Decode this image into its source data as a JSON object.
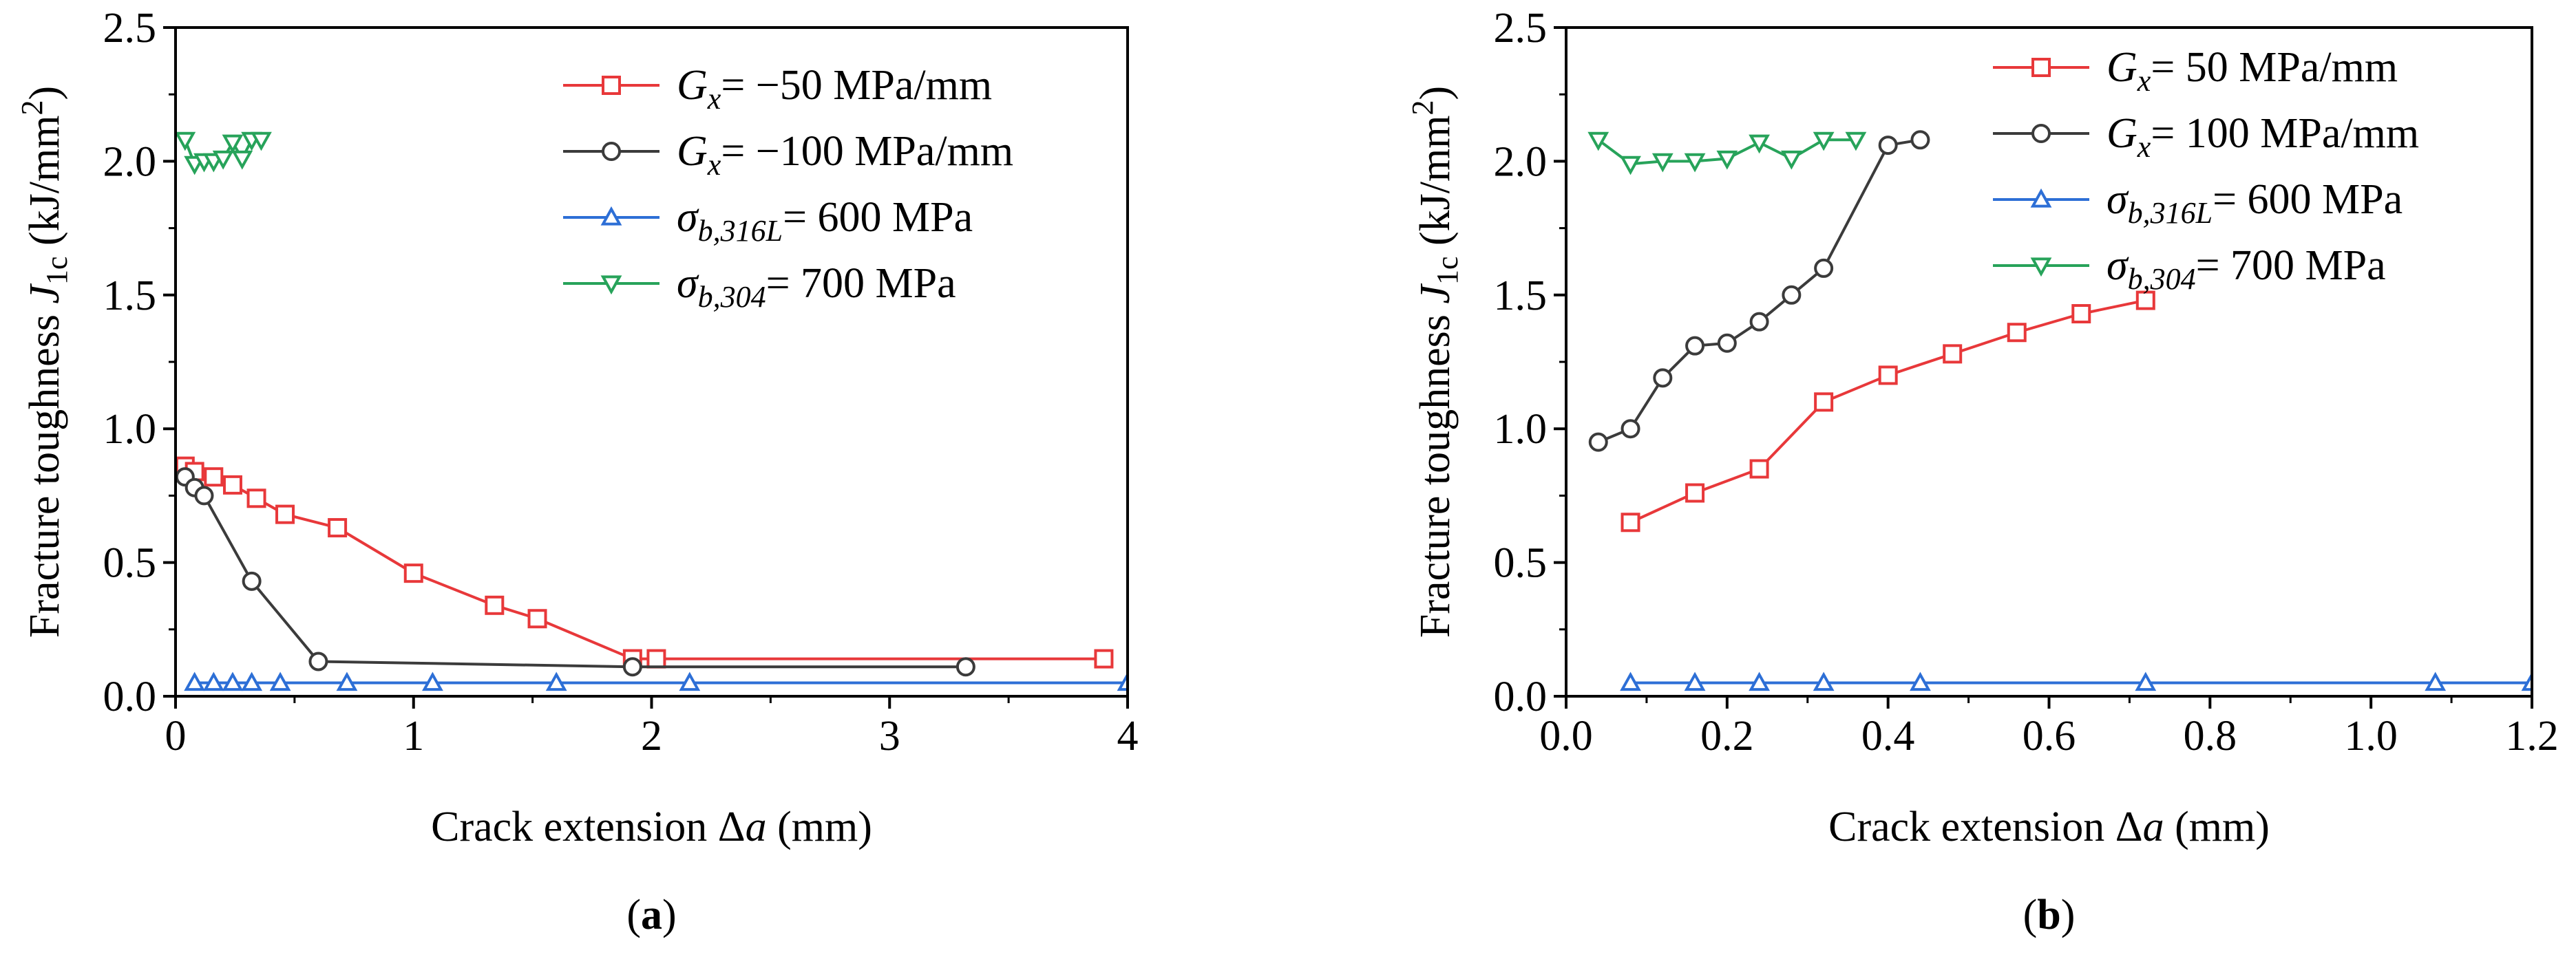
{
  "chart_data": [
    {
      "type": "line",
      "panel_label": "a",
      "xlabel": "Crack extension Δa (mm)",
      "ylabel": "Fracture toughness J1c (kJ/mm2)",
      "xlim": [
        0,
        4
      ],
      "ylim": [
        0,
        2.5
      ],
      "x_ticks": [
        "0",
        "1",
        "2",
        "3",
        "4"
      ],
      "y_ticks": [
        "0.0",
        "0.5",
        "1.0",
        "1.5",
        "2.0",
        "2.5"
      ],
      "legend_position": "top-right",
      "series": [
        {
          "name": "Gx= −50 MPa/mm",
          "name_symbol": "G",
          "name_subscript": "x",
          "name_rest": "= −50 MPa/mm",
          "color": "#e8383a",
          "marker": "square",
          "x": [
            0.04,
            0.08,
            0.16,
            0.24,
            0.34,
            0.46,
            0.68,
            1.0,
            1.34,
            1.52,
            1.92,
            2.02,
            3.9
          ],
          "y": [
            0.86,
            0.84,
            0.82,
            0.79,
            0.74,
            0.68,
            0.63,
            0.46,
            0.34,
            0.29,
            0.14,
            0.14,
            0.14
          ]
        },
        {
          "name": "Gx= −100 MPa/mm",
          "name_symbol": "G",
          "name_subscript": "x",
          "name_rest": "= −100 MPa/mm",
          "color": "#3b3b3b",
          "marker": "circle",
          "x": [
            0.04,
            0.08,
            0.12,
            0.32,
            0.6,
            1.92,
            3.32
          ],
          "y": [
            0.82,
            0.78,
            0.75,
            0.43,
            0.13,
            0.11,
            0.11
          ]
        },
        {
          "name": "σb,316L= 600 MPa",
          "name_symbol": "σ",
          "name_subscript": "b,316L",
          "name_rest": "= 600 MPa",
          "color": "#2d6fd6",
          "marker": "triangle-up",
          "x": [
            0.08,
            0.16,
            0.24,
            0.32,
            0.44,
            0.72,
            1.08,
            1.6,
            2.16,
            4.0
          ],
          "y": [
            0.05,
            0.05,
            0.05,
            0.05,
            0.05,
            0.05,
            0.05,
            0.05,
            0.05,
            0.05
          ]
        },
        {
          "name": "σb,304= 700 MPa",
          "name_symbol": "σ",
          "name_subscript": "b,304",
          "name_rest": "= 700 MPa",
          "color": "#27a35a",
          "marker": "triangle-down",
          "x": [
            0.04,
            0.08,
            0.12,
            0.16,
            0.2,
            0.24,
            0.28,
            0.32,
            0.36
          ],
          "y": [
            2.08,
            1.99,
            2.0,
            2.0,
            2.01,
            2.07,
            2.01,
            2.08,
            2.08
          ]
        }
      ]
    },
    {
      "type": "line",
      "panel_label": "b",
      "xlabel": "Crack extension Δa (mm)",
      "ylabel": "Fracture toughness J1c (kJ/mm2)",
      "xlim": [
        0,
        1.2
      ],
      "ylim": [
        0,
        2.5
      ],
      "x_ticks": [
        "0.0",
        "0.2",
        "0.4",
        "0.6",
        "0.8",
        "1.0",
        "1.2"
      ],
      "y_ticks": [
        "0.0",
        "0.5",
        "1.0",
        "1.5",
        "2.0",
        "2.5"
      ],
      "legend_position": "top-right",
      "series": [
        {
          "name": "Gx= 50 MPa/mm",
          "name_symbol": "G",
          "name_subscript": "x",
          "name_rest": "= 50 MPa/mm",
          "color": "#e8383a",
          "marker": "square",
          "x": [
            0.08,
            0.16,
            0.24,
            0.32,
            0.4,
            0.48,
            0.56,
            0.64,
            0.72
          ],
          "y": [
            0.65,
            0.76,
            0.85,
            1.1,
            1.2,
            1.28,
            1.36,
            1.43,
            1.48
          ]
        },
        {
          "name": "Gx= 100 MPa/mm",
          "name_symbol": "G",
          "name_subscript": "x",
          "name_rest": "= 100 MPa/mm",
          "color": "#3b3b3b",
          "marker": "circle",
          "x": [
            0.04,
            0.08,
            0.12,
            0.16,
            0.2,
            0.24,
            0.28,
            0.32,
            0.4,
            0.44
          ],
          "y": [
            0.95,
            1.0,
            1.19,
            1.31,
            1.32,
            1.4,
            1.5,
            1.6,
            2.06,
            2.08
          ]
        },
        {
          "name": "σb,316L= 600 MPa",
          "name_symbol": "σ",
          "name_subscript": "b,316L",
          "name_rest": "= 600 MPa",
          "color": "#2d6fd6",
          "marker": "triangle-up",
          "x": [
            0.08,
            0.16,
            0.24,
            0.32,
            0.44,
            0.72,
            1.08,
            1.2
          ],
          "y": [
            0.05,
            0.05,
            0.05,
            0.05,
            0.05,
            0.05,
            0.05,
            0.05
          ]
        },
        {
          "name": "σb,304= 700 MPa",
          "name_symbol": "σ",
          "name_subscript": "b,304",
          "name_rest": "= 700 MPa",
          "color": "#27a35a",
          "marker": "triangle-down",
          "x": [
            0.04,
            0.08,
            0.12,
            0.16,
            0.2,
            0.24,
            0.28,
            0.32,
            0.36
          ],
          "y": [
            2.08,
            1.99,
            2.0,
            2.0,
            2.01,
            2.07,
            2.01,
            2.08,
            2.08
          ]
        }
      ]
    }
  ]
}
